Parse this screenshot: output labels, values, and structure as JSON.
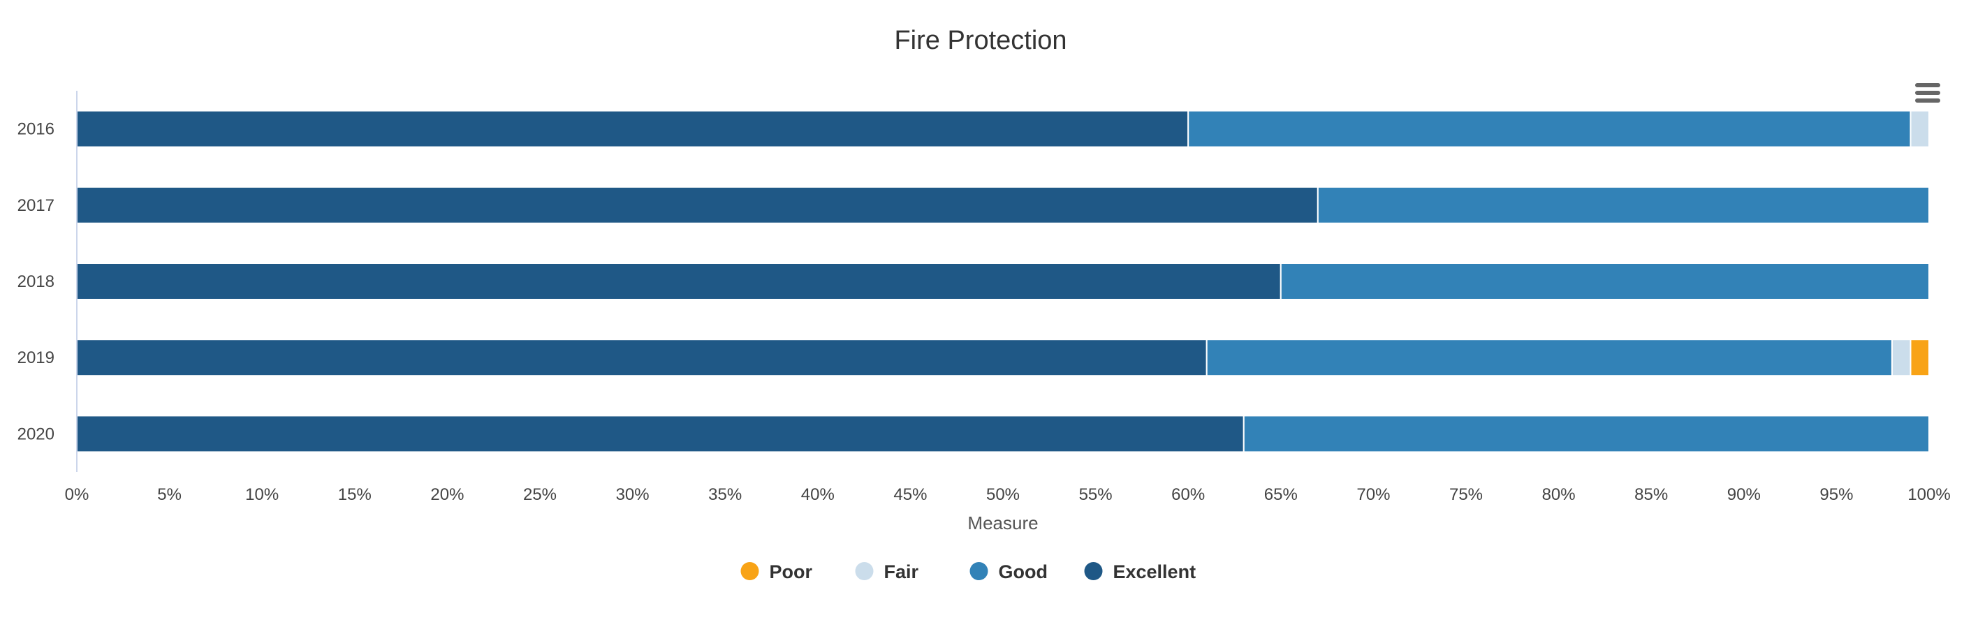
{
  "chart_data": {
    "type": "bar",
    "orientation": "horizontal",
    "stacked": "percent",
    "title": "Fire Protection",
    "xlabel": "Measure",
    "ylabel": "",
    "xlim": [
      0,
      100
    ],
    "x_ticks": [
      "0%",
      "5%",
      "10%",
      "15%",
      "20%",
      "25%",
      "30%",
      "35%",
      "40%",
      "45%",
      "50%",
      "55%",
      "60%",
      "65%",
      "70%",
      "75%",
      "80%",
      "85%",
      "90%",
      "95%",
      "100%"
    ],
    "categories": [
      "2016",
      "2017",
      "2018",
      "2019",
      "2020"
    ],
    "series": [
      {
        "name": "Excellent",
        "color": "#1f5886",
        "values": [
          60,
          67,
          65,
          61,
          63
        ]
      },
      {
        "name": "Good",
        "color": "#3282b7",
        "values": [
          39,
          33,
          35,
          37,
          37
        ]
      },
      {
        "name": "Fair",
        "color": "#cbddeb",
        "values": [
          1,
          0,
          0,
          1,
          0
        ]
      },
      {
        "name": "Poor",
        "color": "#f8a316",
        "values": [
          0,
          0,
          0,
          1,
          0
        ]
      }
    ],
    "legend": {
      "placement": "bottom-center",
      "items": [
        "Poor",
        "Fair",
        "Good",
        "Excellent"
      ]
    }
  },
  "menu": {
    "icon": "hamburger-menu-icon"
  }
}
